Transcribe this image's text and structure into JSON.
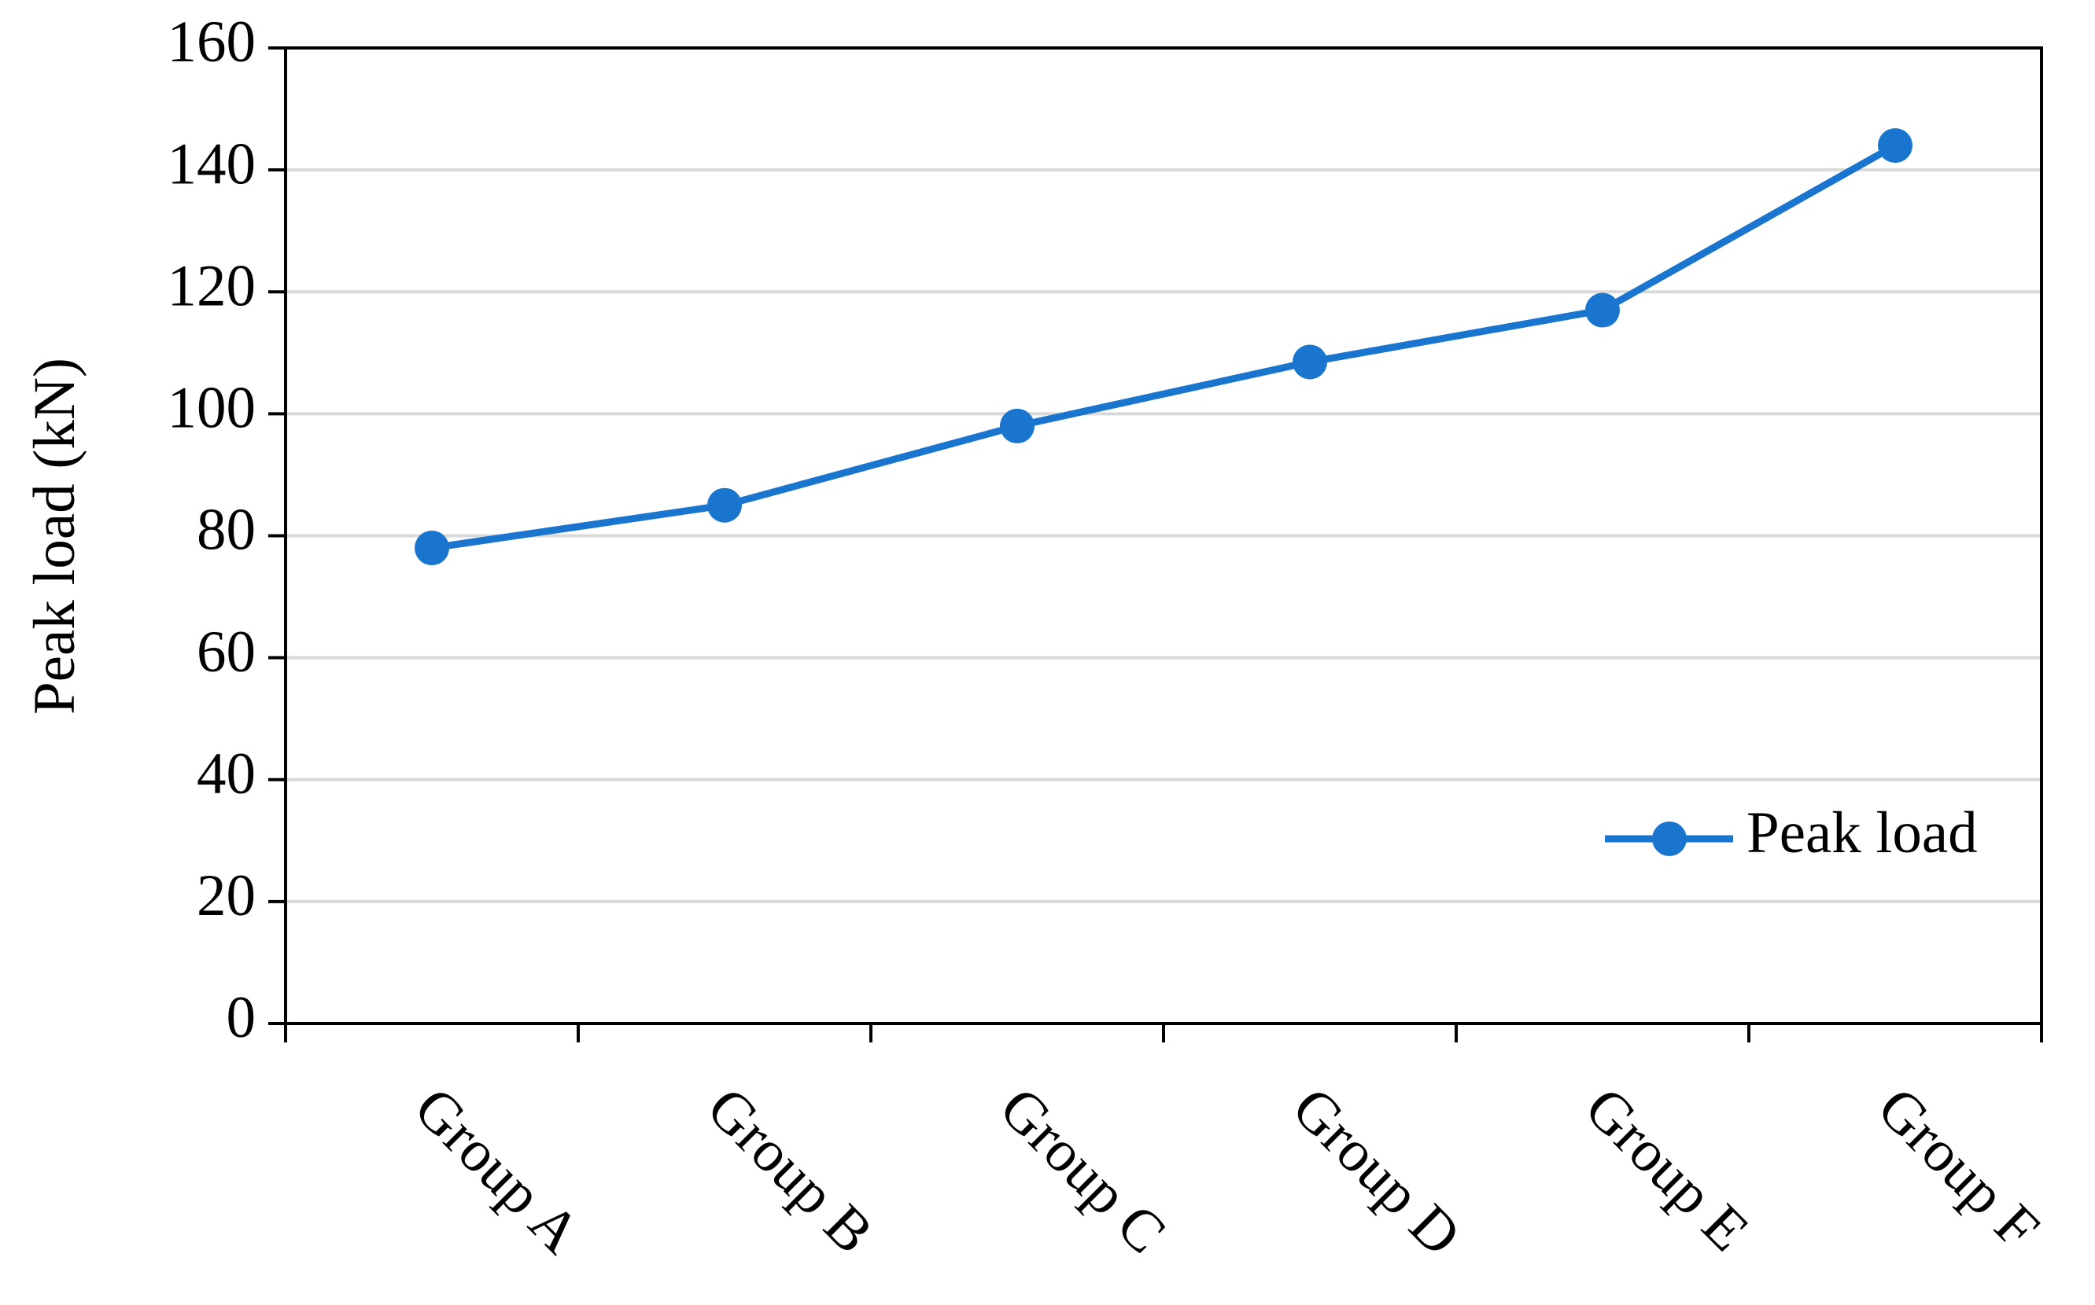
{
  "chart_data": {
    "type": "line",
    "y_label": "Peak load (kN)",
    "categories": [
      "Group A",
      "Group B",
      "Group C",
      "Group D",
      "Group E",
      "Group F"
    ],
    "series": [
      {
        "name": "Peak load",
        "color": "#1a75cf",
        "values": [
          78,
          85,
          98,
          108.5,
          117,
          144
        ]
      }
    ],
    "ylim": [
      0,
      160
    ],
    "yticks": [
      0,
      20,
      40,
      60,
      80,
      100,
      120,
      140,
      160
    ],
    "grid": true,
    "legend": "lower right"
  }
}
